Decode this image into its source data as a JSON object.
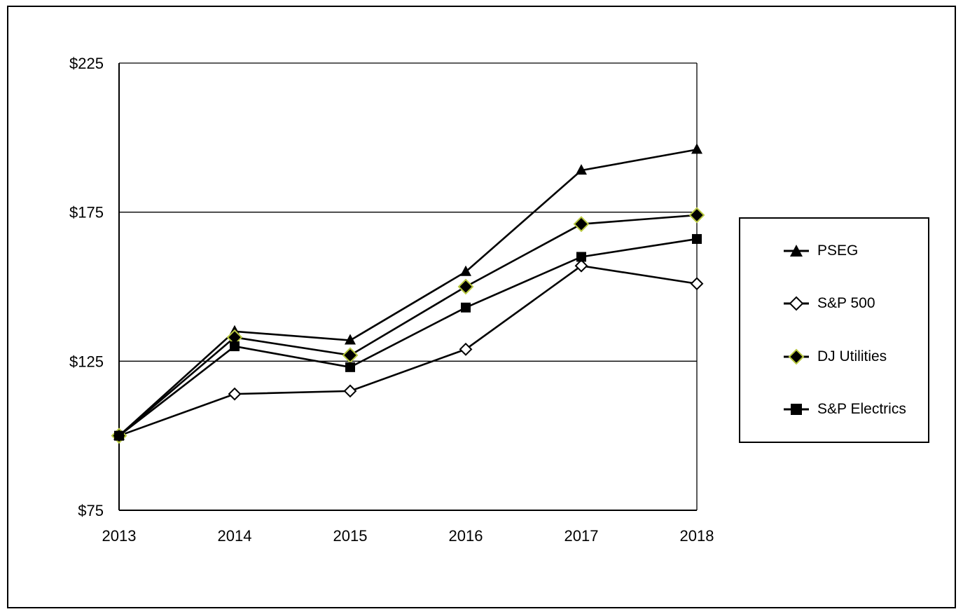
{
  "chart_data": {
    "type": "line",
    "title": "",
    "x": [
      2013,
      2014,
      2015,
      2016,
      2017,
      2018
    ],
    "xtick_labels": [
      "2013",
      "2014",
      "2015",
      "2016",
      "2017",
      "2018"
    ],
    "yticks": [
      75,
      125,
      175,
      225
    ],
    "ytick_labels": [
      "$75",
      "$125",
      "$175",
      "$225"
    ],
    "ylim": [
      75,
      225
    ],
    "gridlines": [
      125,
      175,
      225
    ],
    "grid": "horizontal",
    "legend_position": "right",
    "line_color": "#000000",
    "dj_marker_edge_color": "#b9c93f",
    "series": [
      {
        "name": "PSEG",
        "marker": "triangle",
        "values": [
          100,
          135,
          132,
          155,
          189,
          196
        ]
      },
      {
        "name": "S&P 500",
        "marker": "open-diamond",
        "values": [
          100,
          114,
          115,
          129,
          157,
          151
        ]
      },
      {
        "name": "DJ Utilities",
        "marker": "diamond",
        "values": [
          100,
          133,
          127,
          150,
          171,
          174
        ]
      },
      {
        "name": "S&P Electrics",
        "marker": "square",
        "values": [
          100,
          130,
          123,
          143,
          160,
          166
        ]
      }
    ]
  }
}
